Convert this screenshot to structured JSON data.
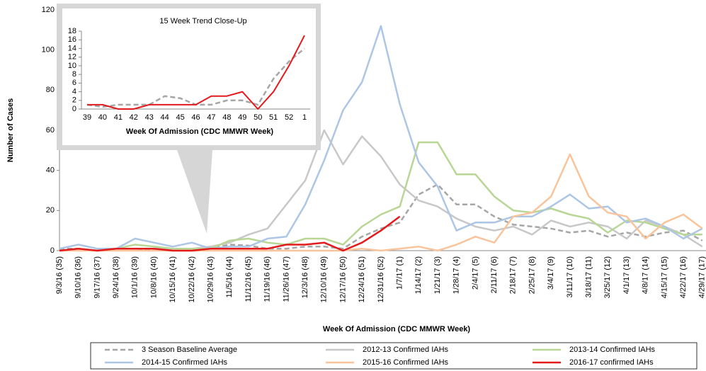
{
  "chart_data": [
    {
      "type": "line",
      "y_label": "Number of Cases",
      "x_label": "Week Of Admission  (CDC MMWR Week)",
      "categories": [
        "9/3/16 (35)",
        "9/10/16 (36)",
        "9/17/16 (37)",
        "9/24/16 (38)",
        "10/1/16 (39)",
        "10/8/16 (40)",
        "10/15/16 (41)",
        "10/22/16 (42)",
        "10/29/16 (43)",
        "11/5/16 (44)",
        "11/12/16 (45)",
        "11/19/16 (46)",
        "11/26/16 (47)",
        "12/3/16 (48)",
        "12/10/16 (49)",
        "12/17/16 (50)",
        "12/24/16 (51)",
        "12/31/16 (52)",
        "1/7/17 (1)",
        "1/14/17 (2)",
        "1/21/17 (3)",
        "1/28/17 (4)",
        "2/4/17 (5)",
        "2/11/17 (6)",
        "2/18/17 (7)",
        "2/25/17 (8)",
        "3/4/17 (9)",
        "3/11/17 (10)",
        "3/18/17 (11)",
        "3/25/17 (12)",
        "4/1/17 (13)",
        "4/8/17 (14)",
        "4/15/17 (15)",
        "4/22/17 (16)",
        "4/29/17 (17)"
      ],
      "series": [
        {
          "name": "3 Season Baseline Average",
          "color": "#a6a6a6",
          "dashed": true,
          "values": [
            1,
            1,
            0,
            1,
            1,
            0.5,
            1,
            1,
            1,
            3,
            2.5,
            1,
            1,
            2,
            2,
            1,
            7,
            11,
            14,
            28,
            33,
            23,
            23,
            17,
            13,
            12,
            11,
            9,
            10,
            7,
            9,
            7,
            9,
            10,
            5
          ]
        },
        {
          "name": "2012-13 Confirmed IAHs",
          "color": "#c8c8c8",
          "values": [
            0,
            1,
            0,
            1,
            1,
            1,
            1,
            1,
            2,
            4,
            8,
            11,
            23,
            35,
            60,
            43,
            57,
            47,
            33,
            25,
            22,
            16,
            12,
            10,
            12,
            8,
            15,
            12,
            14,
            12,
            6,
            15,
            12,
            8,
            2
          ]
        },
        {
          "name": "2013-14 Confirmed IAHs",
          "color": "#b8d694",
          "values": [
            0,
            1,
            0,
            1,
            3,
            2,
            1,
            1,
            1,
            5,
            6,
            4,
            3,
            6,
            6,
            3,
            12,
            18,
            22,
            54,
            54,
            38,
            38,
            27,
            20,
            19,
            21,
            18,
            16,
            9,
            15,
            14,
            11,
            8,
            8
          ]
        },
        {
          "name": "2014-15 Confirmed IAHs",
          "color": "#adc6e5",
          "values": [
            1,
            3,
            1,
            1,
            6,
            4,
            2,
            4,
            1,
            2,
            2,
            6,
            7,
            23,
            45,
            70,
            84,
            112,
            73,
            44,
            32,
            10,
            14,
            14,
            17,
            17,
            22,
            28,
            21,
            22,
            14,
            16,
            12,
            6,
            11
          ]
        },
        {
          "name": "2015-16 Confirmed IAHs",
          "color": "#f9c49b",
          "values": [
            0,
            0,
            0,
            0,
            0,
            0,
            0,
            0,
            0,
            0,
            0,
            0,
            0,
            0,
            0,
            0,
            1,
            0,
            1,
            2,
            0,
            3,
            7,
            4,
            17,
            19,
            27,
            48,
            27,
            19,
            17,
            6,
            14,
            18,
            11
          ]
        },
        {
          "name": "2016-17 confirmed IAHs",
          "color": "#e31a1c",
          "width": 2.5,
          "values": [
            0,
            1,
            0,
            1,
            1,
            1,
            0,
            0,
            1,
            1,
            1,
            1,
            3,
            3,
            4,
            0,
            4,
            10,
            17,
            null,
            null,
            null,
            null,
            null,
            null,
            null,
            null,
            null,
            null,
            null,
            null,
            null,
            null,
            null,
            null
          ]
        }
      ],
      "ylim": [
        0,
        120
      ],
      "yticks": [
        0,
        20,
        40,
        60,
        80,
        100,
        120
      ],
      "legend": "bottom"
    },
    {
      "type": "line",
      "title": "15 Week Trend Close-Up",
      "x_label": "Week Of Admission  (CDC MMWR Week)",
      "categories": [
        "39",
        "40",
        "41",
        "42",
        "43",
        "44",
        "45",
        "46",
        "47",
        "48",
        "49",
        "50",
        "51",
        "52",
        "1"
      ],
      "series": [
        {
          "name": "3 Season Baseline Average",
          "color": "#a6a6a6",
          "dashed": true,
          "values": [
            1,
            0.5,
            1,
            1,
            1,
            3,
            2.5,
            1,
            1,
            2,
            2,
            1,
            7,
            11,
            14
          ]
        },
        {
          "name": "2016-17 confirmed IAHs",
          "color": "#e31a1c",
          "width": 2,
          "values": [
            1,
            1,
            0,
            0,
            1,
            1,
            1,
            1,
            3,
            3,
            4,
            0,
            4,
            10,
            17
          ]
        }
      ],
      "ylim": [
        0,
        18
      ],
      "yticks": [
        0,
        2,
        4,
        6,
        8,
        10,
        12,
        14,
        16,
        18
      ]
    }
  ]
}
